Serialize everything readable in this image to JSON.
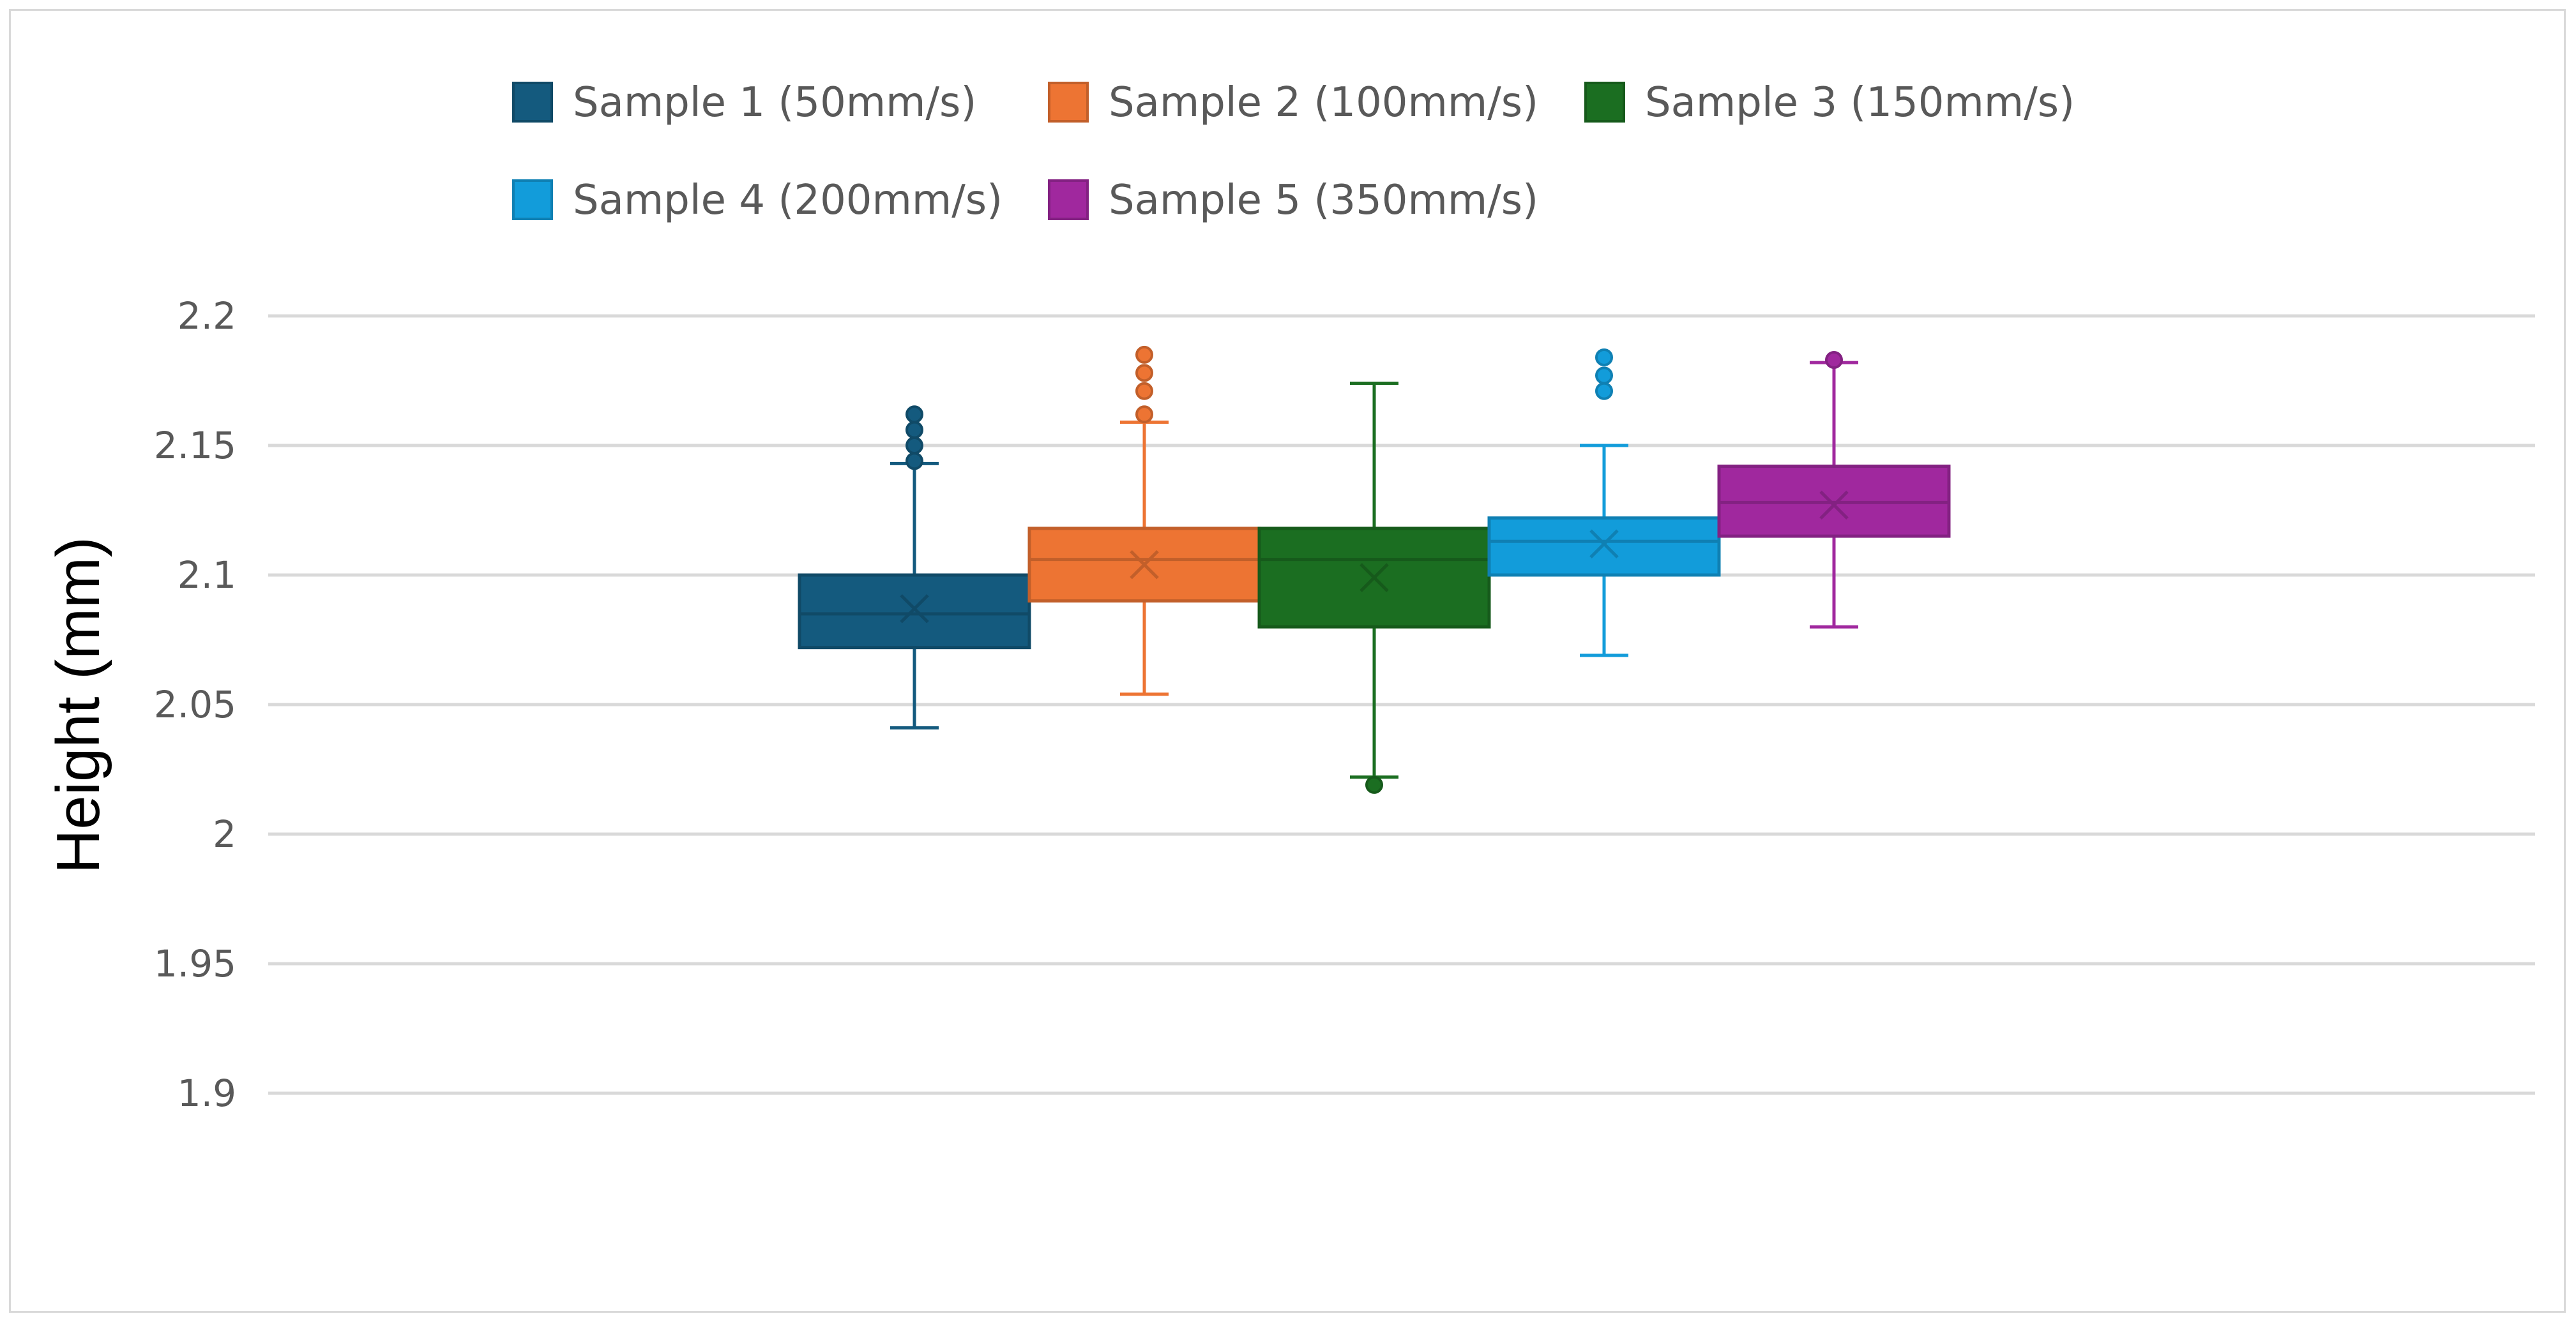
{
  "chart_data": {
    "type": "boxplot",
    "title": "",
    "xlabel": "",
    "ylabel": "Height  (mm)",
    "ylim": [
      1.9,
      2.2
    ],
    "yticks": [
      1.9,
      1.95,
      2,
      2.05,
      2.1,
      2.15,
      2.2
    ],
    "ytick_labels": [
      "1.9",
      "1.95",
      "2",
      "2.05",
      "2.1",
      "2.15",
      "2.2"
    ],
    "grid": true,
    "legend_position": "top",
    "series": [
      {
        "name": "Sample 1 (50mm/s)",
        "color": "#145A7E",
        "whisker_low": 2.041,
        "q1": 2.072,
        "median": 2.085,
        "mean": 2.087,
        "q3": 2.1,
        "whisker_high": 2.143,
        "outliers": [
          2.144,
          2.15,
          2.156,
          2.162
        ]
      },
      {
        "name": "Sample 2 (100mm/s)",
        "color": "#ED7433",
        "whisker_low": 2.054,
        "q1": 2.09,
        "median": 2.106,
        "mean": 2.104,
        "q3": 2.118,
        "whisker_high": 2.159,
        "outliers": [
          2.162,
          2.171,
          2.178,
          2.185
        ]
      },
      {
        "name": "Sample 3 (150mm/s)",
        "color": "#1B6E21",
        "whisker_low": 2.022,
        "q1": 2.08,
        "median": 2.106,
        "mean": 2.099,
        "q3": 2.118,
        "whisker_high": 2.174,
        "outliers": [
          2.019
        ]
      },
      {
        "name": "Sample 4 (200mm/s)",
        "color": "#129CDA",
        "whisker_low": 2.069,
        "q1": 2.1,
        "median": 2.113,
        "mean": 2.112,
        "q3": 2.122,
        "whisker_high": 2.15,
        "outliers": [
          2.171,
          2.177,
          2.184
        ]
      },
      {
        "name": "Sample 5 (350mm/s)",
        "color": "#A0289E",
        "whisker_low": 2.08,
        "q1": 2.115,
        "median": 2.128,
        "mean": 2.127,
        "q3": 2.142,
        "whisker_high": 2.182,
        "outliers": [
          2.183
        ]
      }
    ]
  }
}
